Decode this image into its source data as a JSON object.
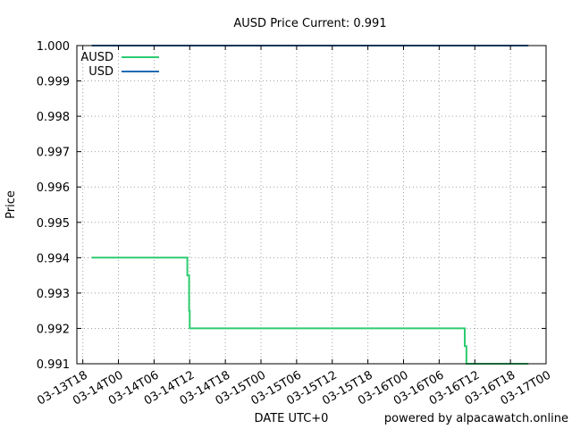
{
  "chart_data": {
    "type": "line",
    "title": "AUSD Price Current: 0.991",
    "xlabel": "DATE UTC+0",
    "ylabel": "Price",
    "credit": "powered by alpacawatch.online",
    "x_tick_labels": [
      "03-13T18",
      "03-14T00",
      "03-14T06",
      "03-14T12",
      "03-14T18",
      "03-15T00",
      "03-15T06",
      "03-15T12",
      "03-15T18",
      "03-16T00",
      "03-16T06",
      "03-16T12",
      "03-16T18",
      "03-17T00"
    ],
    "xlim": [
      -1.0,
      78.0
    ],
    "ylim": [
      0.991,
      1.0
    ],
    "y_ticks": [
      "0.991",
      "0.992",
      "0.993",
      "0.994",
      "0.995",
      "0.996",
      "0.997",
      "0.998",
      "0.999",
      "1.000"
    ],
    "grid": true,
    "legend_position": "top-left",
    "series": [
      {
        "name": "AUSD",
        "color": "#2ecc71",
        "points": [
          [
            1.5,
            0.994
          ],
          [
            17.6,
            0.994
          ],
          [
            17.6,
            0.9935
          ],
          [
            17.9,
            0.9935
          ],
          [
            17.9,
            0.9925
          ],
          [
            18.0,
            0.9925
          ],
          [
            18.0,
            0.992
          ],
          [
            64.3,
            0.992
          ],
          [
            64.3,
            0.9915
          ],
          [
            64.6,
            0.9915
          ],
          [
            64.6,
            0.991
          ],
          [
            75.0,
            0.991
          ]
        ]
      },
      {
        "name": "USD",
        "color": "#1f6bb4",
        "points": [
          [
            1.5,
            1.0
          ],
          [
            75.0,
            1.0
          ]
        ]
      }
    ]
  }
}
